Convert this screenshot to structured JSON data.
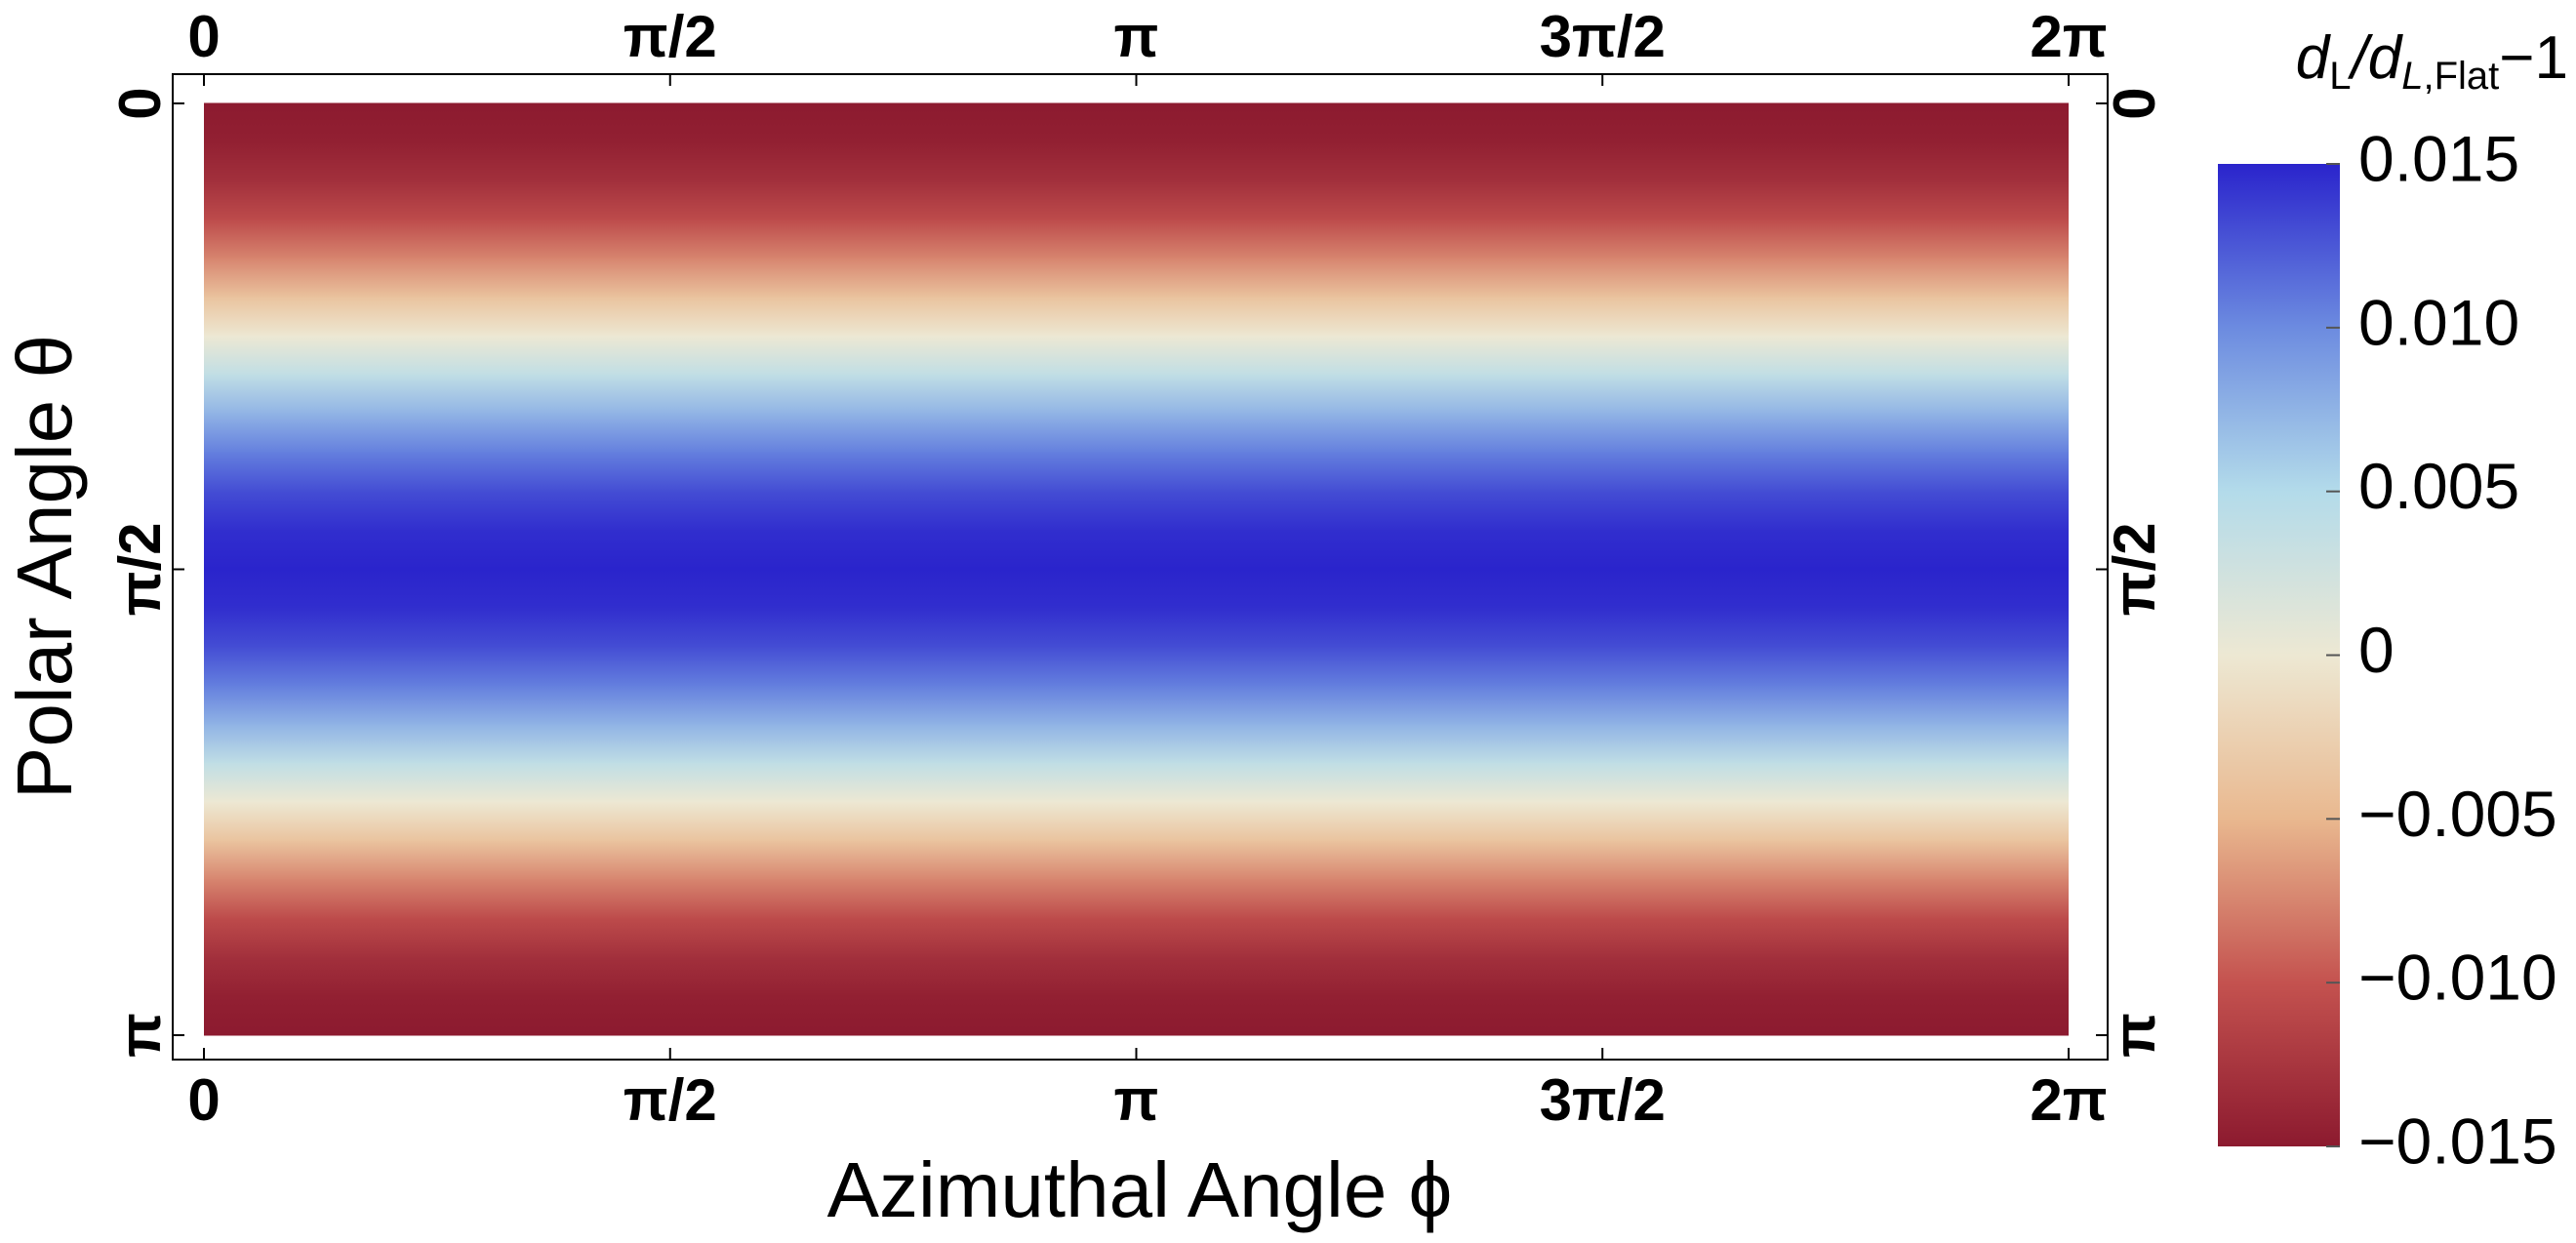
{
  "chart_data": {
    "type": "density",
    "xlabel": "Azimuthal Angle ϕ",
    "ylabel": "Polar Angle θ",
    "colorbar_label": [
      "d",
      "L",
      "/d",
      "L,Flat",
      "−1"
    ],
    "y": [
      0,
      0.1309,
      0.2618,
      0.3927,
      0.5236,
      0.6545,
      0.7854,
      0.9163,
      1.0472,
      1.1781,
      1.309,
      1.4399,
      1.5708,
      1.7017,
      1.8326,
      1.9635,
      2.0944,
      2.2253,
      2.3562,
      2.4871,
      2.618,
      2.7489,
      2.8798,
      3.0107,
      3.1416
    ],
    "values": [
      -0.015,
      -0.0145,
      -0.013,
      -0.0106,
      -0.0075,
      -0.0039,
      0,
      0.0039,
      0.0075,
      0.0106,
      0.013,
      0.0145,
      0.015,
      0.0145,
      0.013,
      0.0106,
      0.0075,
      0.0039,
      0,
      -0.0039,
      -0.0075,
      -0.0106,
      -0.013,
      -0.0145,
      -0.015
    ],
    "xlim": [
      0,
      6.2832
    ],
    "ylim": [
      0,
      3.1416
    ],
    "yreverse": true,
    "xticks": [
      0,
      {
        "value": 1.5708,
        "label": "π/2"
      },
      {
        "value": 3.1416,
        "label": "π"
      },
      {
        "value": 4.7124,
        "label": "3π/2"
      },
      {
        "value": 6.2832,
        "label": "2π"
      }
    ],
    "yticks": [
      0,
      {
        "value": 1.5708,
        "label": "π/2"
      },
      {
        "value": 3.1416,
        "label": "π"
      }
    ],
    "clim": [
      -0.015,
      0.015
    ],
    "cticks": [
      {
        "value": -0.015,
        "label": "−0.015"
      },
      {
        "value": -0.01,
        "label": "−0.010"
      },
      {
        "value": -0.005,
        "label": "−0.005"
      },
      0,
      0.005,
      {
        "value": 0.01,
        "label": "0.010"
      },
      0.015
    ],
    "colormap": [
      "#8c1a2f",
      "#c4524f",
      "#e9b88f",
      "#ede8d3",
      "#b3dbea",
      "#6c8be0",
      "#2a24cc"
    ]
  }
}
